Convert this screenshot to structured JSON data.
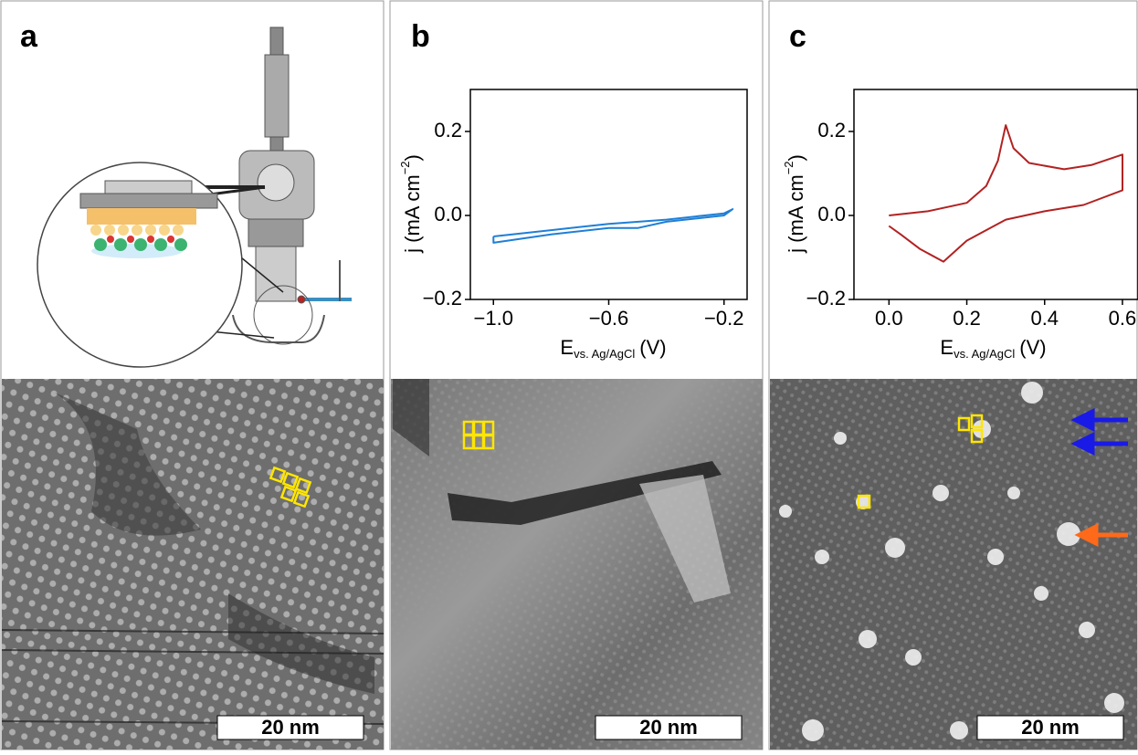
{
  "panels": [
    {
      "label": "a",
      "scale_bar": "20 nm"
    },
    {
      "label": "b",
      "scale_bar": "20 nm"
    },
    {
      "label": "c",
      "scale_bar": "20 nm"
    }
  ],
  "chart_data": [
    {
      "type": "line",
      "x_label": "E",
      "x_label_sub": "vs. Ag/AgCl",
      "x_label_unit": "(V)",
      "y_label": "j (mA cm",
      "y_label_sup": "−2",
      "y_label_end": ")",
      "xlim": [
        -1.08,
        -0.12
      ],
      "ylim": [
        -0.2,
        0.3
      ],
      "xticks": [
        {
          "value": -1.0,
          "label": "−1.0"
        },
        {
          "value": -0.6,
          "label": "−0.6"
        },
        {
          "value": -0.2,
          "label": "−0.2"
        }
      ],
      "yticks": [
        {
          "value": 0.2,
          "label": "0.2"
        },
        {
          "value": 0.0,
          "label": "0.0"
        },
        {
          "value": -0.2,
          "label": "−0.2"
        }
      ],
      "series": [
        {
          "color": "#1f7fd6",
          "x": [
            -1.0,
            -0.8,
            -0.6,
            -0.4,
            -0.2,
            -0.17,
            -0.2,
            -0.4,
            -0.5,
            -0.6,
            -0.8,
            -1.0,
            -1.0
          ],
          "values": [
            -0.05,
            -0.035,
            -0.02,
            -0.01,
            0.005,
            0.015,
            0.0,
            -0.015,
            -0.03,
            -0.03,
            -0.045,
            -0.065,
            -0.05
          ]
        }
      ]
    },
    {
      "type": "line",
      "x_label": "E",
      "x_label_sub": "vs. Ag/AgCl",
      "x_label_unit": "(V)",
      "y_label": "j (mA cm",
      "y_label_sup": "−2",
      "y_label_end": ")",
      "xlim": [
        -0.09,
        0.64
      ],
      "ylim": [
        -0.2,
        0.3
      ],
      "xticks": [
        {
          "value": 0.0,
          "label": "0.0"
        },
        0.2,
        0.4,
        0.6
      ],
      "yticks": [
        {
          "value": 0.2,
          "label": "0.2"
        },
        {
          "value": 0.0,
          "label": "0.0"
        },
        {
          "value": -0.2,
          "label": "−0.2"
        }
      ],
      "series": [
        {
          "color": "#b22222",
          "x": [
            0.0,
            0.1,
            0.2,
            0.25,
            0.28,
            0.3,
            0.32,
            0.36,
            0.45,
            0.52,
            0.6,
            0.6,
            0.5,
            0.4,
            0.3,
            0.2,
            0.14,
            0.08,
            0.03,
            0.0
          ],
          "values": [
            0.0,
            0.01,
            0.03,
            0.07,
            0.13,
            0.215,
            0.16,
            0.125,
            0.11,
            0.12,
            0.145,
            0.06,
            0.025,
            0.01,
            -0.01,
            -0.06,
            -0.11,
            -0.08,
            -0.045,
            -0.025
          ]
        }
      ]
    }
  ]
}
